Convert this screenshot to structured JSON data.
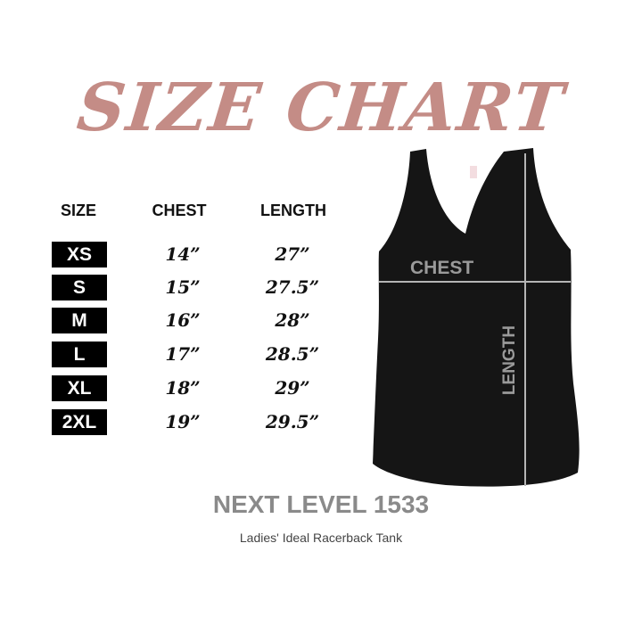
{
  "title": "SIZE CHART",
  "colors": {
    "title": "#c48c86",
    "brand": "#8a8a8a",
    "garment": "#151515",
    "measure_line": "#b5b5b5"
  },
  "table": {
    "headers": {
      "size": "SIZE",
      "chest": "CHEST",
      "length": "LENGTH"
    },
    "rows": [
      {
        "size": "XS",
        "chest": "14”",
        "length": "27”"
      },
      {
        "size": "S",
        "chest": "15”",
        "length": "27.5”"
      },
      {
        "size": "M",
        "chest": "16”",
        "length": "28”"
      },
      {
        "size": "L",
        "chest": "17”",
        "length": "28.5”"
      },
      {
        "size": "XL",
        "chest": "18”",
        "length": "29”"
      },
      {
        "size": "2XL",
        "chest": "19”",
        "length": "29.5”"
      }
    ]
  },
  "diagram": {
    "chest_label": "CHEST",
    "length_label": "LENGTH",
    "garment_icon": "racerback-tank-top"
  },
  "product": {
    "name": "NEXT LEVEL 1533",
    "description": "Ladies' Ideal Racerback Tank"
  }
}
